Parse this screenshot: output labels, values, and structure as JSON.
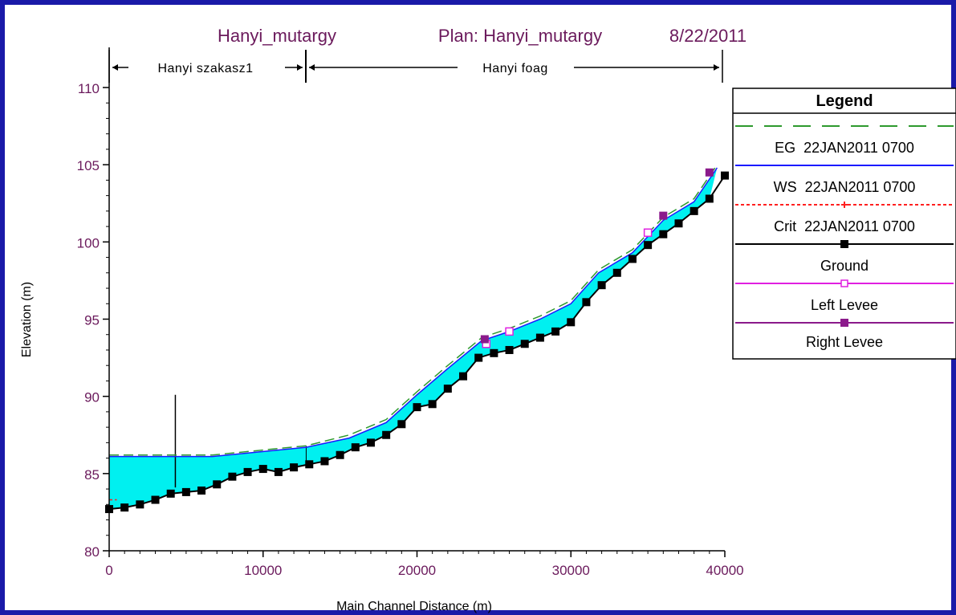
{
  "chart_data": {
    "type": "line",
    "title": {
      "project": "Hanyi_mutargy",
      "plan": "Plan: Hanyi_mutargy",
      "date": "8/22/2011"
    },
    "reaches": [
      {
        "name": "Hanyi szakasz1",
        "x_range": [
          0,
          12800
        ]
      },
      {
        "name": "Hanyi foag",
        "x_range": [
          12800,
          40000
        ]
      }
    ],
    "xlabel": "Main Channel Distance (m)",
    "ylabel": "Elevation (m)",
    "xlim": [
      0,
      40000
    ],
    "ylim": [
      80,
      110
    ],
    "x_ticks": [
      "0",
      "10000",
      "20000",
      "30000",
      "40000"
    ],
    "y_ticks": [
      "80",
      "85",
      "90",
      "95",
      "100",
      "105",
      "110"
    ],
    "grid": false,
    "legend": {
      "title": "Legend",
      "placement": "right",
      "entries": [
        "EG  22JAN2011 0700",
        "WS  22JAN2011 0700",
        "Crit  22JAN2011 0700",
        "Ground",
        "Left Levee",
        "Right Levee"
      ]
    },
    "structures": [
      {
        "x": 4300,
        "elev_top": 90.1,
        "elev_bottom": 84.1
      }
    ],
    "series": [
      {
        "name": "EG  22JAN2011 0700",
        "color": "#2e9a2e",
        "x": [
          0,
          6700,
          12800,
          15600,
          18000,
          20000,
          22000,
          24200,
          26000,
          28000,
          30000,
          31800,
          34000,
          36000,
          38000,
          39500
        ],
        "y": [
          86.2,
          86.2,
          86.8,
          87.5,
          88.5,
          90.3,
          92.0,
          93.8,
          94.4,
          95.2,
          96.2,
          98.2,
          99.5,
          101.6,
          102.8,
          105.0
        ]
      },
      {
        "name": "WS  22JAN2011 0700",
        "color": "#1a1aff",
        "x": [
          0,
          6700,
          12800,
          15600,
          18000,
          20000,
          22000,
          24200,
          26000,
          28000,
          30000,
          31800,
          34000,
          36000,
          38000,
          39500
        ],
        "y": [
          86.1,
          86.1,
          86.7,
          87.3,
          88.3,
          90.1,
          91.8,
          93.6,
          94.2,
          95.0,
          96.0,
          98.0,
          99.3,
          101.4,
          102.6,
          104.8
        ]
      },
      {
        "name": "Crit  22JAN2011 0700",
        "color": "#ff2020",
        "x": [
          0,
          500
        ],
        "y": [
          83.3,
          83.3
        ]
      },
      {
        "name": "Ground",
        "color": "#000000",
        "x": [
          0,
          1000,
          2000,
          3000,
          4000,
          5000,
          6000,
          7000,
          8000,
          9000,
          10000,
          11000,
          12000,
          13000,
          14000,
          15000,
          16000,
          17000,
          18000,
          19000,
          20000,
          21000,
          22000,
          23000,
          24000,
          25000,
          26000,
          27000,
          28000,
          29000,
          30000,
          31000,
          32000,
          33000,
          34000,
          35000,
          36000,
          37000,
          38000,
          39000,
          40000
        ],
        "y": [
          82.7,
          82.8,
          83.0,
          83.3,
          83.7,
          83.8,
          83.9,
          84.3,
          84.8,
          85.1,
          85.3,
          85.1,
          85.4,
          85.6,
          85.8,
          86.2,
          86.7,
          87.0,
          87.5,
          88.2,
          89.3,
          89.5,
          90.5,
          91.3,
          92.5,
          92.8,
          93.0,
          93.4,
          93.8,
          94.2,
          94.8,
          96.1,
          97.2,
          98.0,
          98.9,
          99.8,
          100.5,
          101.2,
          102.0,
          102.8,
          104.3
        ]
      },
      {
        "name": "Left Levee",
        "color": "#e020e0",
        "x": [
          24500,
          26000,
          35000
        ],
        "y": [
          93.4,
          94.2,
          100.6
        ]
      },
      {
        "name": "Right Levee",
        "color": "#8b1a8b",
        "x": [
          24400,
          36000,
          39000
        ],
        "y": [
          93.7,
          101.7,
          104.5
        ]
      }
    ]
  }
}
